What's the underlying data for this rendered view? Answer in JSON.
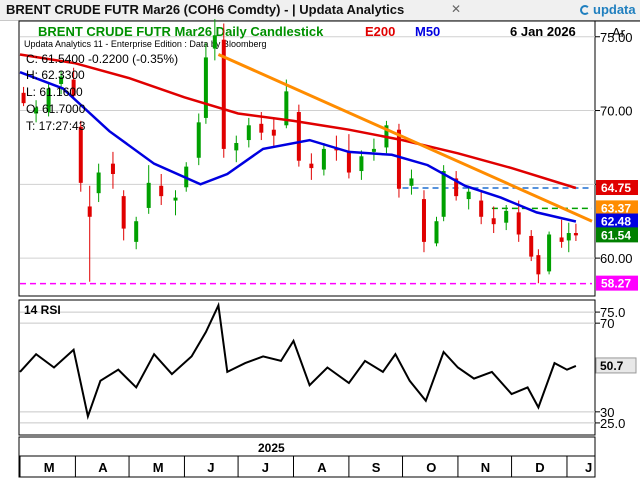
{
  "window": {
    "title": "BRENT CRUDE FUTR  Mar26 (COH6 Comdty) - | Updata Analytics",
    "close_glyph": "✕",
    "logo_text": "updata",
    "logo_icon": "updata-logo-icon"
  },
  "chart_data": [
    {
      "type": "candlestick",
      "title": "BRENT CRUDE FUTR  Mar26 Daily Candlestick",
      "indicators": [
        {
          "label": "E200",
          "color": "#e00000"
        },
        {
          "label": "M50",
          "color": "#0000e0"
        }
      ],
      "date": "6 Jan 2026",
      "subtitle": "Updata Analytics 11 - Enterprise Edition : Data by Bloomberg",
      "ohlc_readout": {
        "close": "C: 61.5400  -0.2200 (-0.35%)",
        "high": "H: 62.3300",
        "low": "L: 61.1600",
        "open": "O: 61.7000",
        "time": "T: 17:27:43"
      },
      "axis_label": "Ar",
      "yticks": [
        "75.00",
        "70.00",
        "65.00",
        "60.00"
      ],
      "ylim": [
        57.5,
        76.0
      ],
      "x_range": [
        "2025-03-01",
        "2026-01-15"
      ],
      "value_tags": [
        {
          "text": "64.75",
          "value": 64.75,
          "bg": "#e00000",
          "fg": "#ffffff"
        },
        {
          "text": "63.37",
          "value": 63.37,
          "bg": "#ff8c00",
          "fg": "#ffffff"
        },
        {
          "text": "62.48",
          "value": 62.48,
          "bg": "#0000e0",
          "fg": "#ffffff"
        },
        {
          "text": "61.54",
          "value": 61.54,
          "bg": "#008000",
          "fg": "#ffffff"
        },
        {
          "text": "58.27",
          "value": 58.27,
          "bg": "#ff00ff",
          "fg": "#ffffff"
        }
      ],
      "horizontal_lines": [
        {
          "value": 64.75,
          "color": "#1f6fd0",
          "style": "dashed",
          "from": "2025-10-01"
        },
        {
          "value": 63.37,
          "color": "#00a000",
          "style": "dashed",
          "from": "2025-11-20"
        },
        {
          "value": 58.27,
          "color": "#ff00ff",
          "style": "dashed",
          "from": "2025-03-01"
        }
      ],
      "trendline": {
        "color": "#ff8c00",
        "points": [
          [
            "2025-06-20",
            73.8
          ],
          [
            "2026-01-15",
            62.5
          ]
        ]
      },
      "candles": [
        [
          "2025-03-03",
          71.2,
          71.6,
          70.3,
          70.5
        ],
        [
          "2025-03-10",
          69.8,
          70.7,
          69.2,
          70.2
        ],
        [
          "2025-03-17",
          69.9,
          71.8,
          69.6,
          71.5
        ],
        [
          "2025-03-24",
          71.8,
          72.7,
          71.1,
          72.3
        ],
        [
          "2025-03-31",
          72.1,
          72.9,
          70.8,
          71.0
        ],
        [
          "2025-04-04",
          68.9,
          69.3,
          64.5,
          65.1
        ],
        [
          "2025-04-09",
          63.5,
          64.9,
          58.4,
          62.8
        ],
        [
          "2025-04-14",
          64.4,
          66.4,
          63.8,
          65.8
        ],
        [
          "2025-04-22",
          66.4,
          67.2,
          64.7,
          65.7
        ],
        [
          "2025-04-28",
          64.2,
          64.6,
          61.2,
          62.0
        ],
        [
          "2025-05-05",
          61.1,
          62.8,
          60.6,
          62.5
        ],
        [
          "2025-05-12",
          63.4,
          66.3,
          63.0,
          65.1
        ],
        [
          "2025-05-19",
          64.9,
          65.7,
          63.6,
          64.2
        ],
        [
          "2025-05-27",
          63.9,
          64.6,
          62.9,
          64.1
        ],
        [
          "2025-06-02",
          64.8,
          66.5,
          64.5,
          66.2
        ],
        [
          "2025-06-09",
          66.8,
          69.8,
          66.3,
          69.2
        ],
        [
          "2025-06-13",
          69.5,
          74.6,
          69.1,
          73.6
        ],
        [
          "2025-06-18",
          74.2,
          76.2,
          73.4,
          75.1
        ],
        [
          "2025-06-23",
          74.8,
          75.9,
          66.8,
          67.4
        ],
        [
          "2025-06-30",
          67.3,
          68.3,
          66.5,
          67.8
        ],
        [
          "2025-07-07",
          68.0,
          69.5,
          67.5,
          69.0
        ],
        [
          "2025-07-14",
          69.1,
          69.9,
          68.0,
          68.5
        ],
        [
          "2025-07-21",
          68.7,
          69.4,
          67.6,
          68.3
        ],
        [
          "2025-07-28",
          69.0,
          72.1,
          68.8,
          71.3
        ],
        [
          "2025-08-04",
          69.9,
          70.4,
          66.2,
          66.6
        ],
        [
          "2025-08-11",
          66.4,
          67.1,
          65.3,
          66.1
        ],
        [
          "2025-08-18",
          66.0,
          67.8,
          65.6,
          67.4
        ],
        [
          "2025-08-25",
          67.5,
          68.3,
          66.6,
          67.3
        ],
        [
          "2025-09-01",
          67.2,
          68.4,
          65.4,
          65.8
        ],
        [
          "2025-09-08",
          65.9,
          67.3,
          65.3,
          66.9
        ],
        [
          "2025-09-15",
          67.2,
          68.1,
          66.6,
          67.4
        ],
        [
          "2025-09-22",
          67.5,
          69.3,
          67.1,
          69.0
        ],
        [
          "2025-09-29",
          68.7,
          69.1,
          64.1,
          64.7
        ],
        [
          "2025-10-06",
          64.9,
          66.0,
          64.3,
          65.4
        ],
        [
          "2025-10-13",
          64.0,
          64.6,
          60.4,
          61.1
        ],
        [
          "2025-10-20",
          61.0,
          62.8,
          60.8,
          62.5
        ],
        [
          "2025-10-24",
          62.8,
          66.3,
          62.5,
          65.9
        ],
        [
          "2025-10-31",
          65.4,
          65.9,
          63.9,
          64.2
        ],
        [
          "2025-11-07",
          64.0,
          64.9,
          63.3,
          64.5
        ],
        [
          "2025-11-14",
          63.9,
          64.6,
          62.3,
          62.8
        ],
        [
          "2025-11-21",
          62.7,
          63.5,
          61.7,
          62.3
        ],
        [
          "2025-11-28",
          62.4,
          63.6,
          61.9,
          63.2
        ],
        [
          "2025-12-05",
          63.1,
          63.9,
          61.1,
          61.6
        ],
        [
          "2025-12-12",
          61.5,
          61.9,
          59.8,
          60.1
        ],
        [
          "2025-12-16",
          60.2,
          60.6,
          58.3,
          58.9
        ],
        [
          "2025-12-22",
          59.1,
          61.8,
          58.9,
          61.6
        ],
        [
          "2025-12-29",
          61.4,
          62.6,
          60.7,
          61.1
        ],
        [
          "2026-01-02",
          61.2,
          62.4,
          60.4,
          61.7
        ],
        [
          "2026-01-06",
          61.7,
          62.33,
          61.16,
          61.54
        ]
      ],
      "e200": [
        [
          "2025-03-01",
          73.8
        ],
        [
          "2025-04-01",
          73.2
        ],
        [
          "2025-05-01",
          72.2
        ],
        [
          "2025-06-01",
          70.9
        ],
        [
          "2025-07-01",
          69.8
        ],
        [
          "2025-08-01",
          69.3
        ],
        [
          "2025-09-01",
          68.7
        ],
        [
          "2025-10-01",
          68.0
        ],
        [
          "2025-11-01",
          67.1
        ],
        [
          "2025-12-01",
          66.1
        ],
        [
          "2026-01-06",
          64.75
        ]
      ],
      "m50": [
        [
          "2025-03-01",
          72.6
        ],
        [
          "2025-03-25",
          71.5
        ],
        [
          "2025-04-20",
          68.6
        ],
        [
          "2025-05-15",
          66.4
        ],
        [
          "2025-06-10",
          65.0
        ],
        [
          "2025-06-25",
          65.7
        ],
        [
          "2025-07-15",
          67.4
        ],
        [
          "2025-08-10",
          68.0
        ],
        [
          "2025-09-01",
          67.2
        ],
        [
          "2025-09-25",
          67.0
        ],
        [
          "2025-10-15",
          66.3
        ],
        [
          "2025-11-05",
          64.9
        ],
        [
          "2025-11-25",
          64.1
        ],
        [
          "2025-12-15",
          63.1
        ],
        [
          "2026-01-06",
          62.48
        ]
      ]
    },
    {
      "type": "line",
      "title": "14 RSI",
      "yticks": [
        "75.0",
        "70",
        "30",
        "25.0"
      ],
      "ylim": [
        20,
        80
      ],
      "levels": [
        75,
        70,
        30,
        25
      ],
      "value_tag": {
        "text": "50.7",
        "value": 50.7,
        "bg": "#e8e8e8",
        "fg": "#000000"
      },
      "x": [
        "2025-03-01",
        "2025-03-10",
        "2025-03-20",
        "2025-03-31",
        "2025-04-08",
        "2025-04-15",
        "2025-04-25",
        "2025-05-05",
        "2025-05-15",
        "2025-05-25",
        "2025-06-05",
        "2025-06-13",
        "2025-06-20",
        "2025-06-25",
        "2025-07-05",
        "2025-07-15",
        "2025-07-25",
        "2025-08-01",
        "2025-08-10",
        "2025-08-20",
        "2025-09-01",
        "2025-09-10",
        "2025-09-20",
        "2025-09-27",
        "2025-10-05",
        "2025-10-14",
        "2025-10-24",
        "2025-11-01",
        "2025-11-10",
        "2025-11-20",
        "2025-12-01",
        "2025-12-10",
        "2025-12-16",
        "2025-12-25",
        "2026-01-01",
        "2026-01-06"
      ],
      "y": [
        48,
        56,
        50,
        58,
        28,
        44,
        49,
        41,
        56,
        47,
        55,
        66,
        78,
        48,
        52,
        55,
        53,
        62,
        42,
        50,
        43,
        53,
        48,
        56,
        44,
        35,
        57,
        50,
        45,
        48,
        38,
        41,
        32,
        52,
        49,
        50.7
      ]
    }
  ],
  "xaxis": {
    "year_label": "2025",
    "months": [
      {
        "label": "M",
        "date": "2025-03-01"
      },
      {
        "label": "A",
        "date": "2025-04-01"
      },
      {
        "label": "M",
        "date": "2025-05-01"
      },
      {
        "label": "J",
        "date": "2025-06-01"
      },
      {
        "label": "J",
        "date": "2025-07-01"
      },
      {
        "label": "A",
        "date": "2025-08-01"
      },
      {
        "label": "S",
        "date": "2025-09-01"
      },
      {
        "label": "O",
        "date": "2025-10-01"
      },
      {
        "label": "N",
        "date": "2025-11-01"
      },
      {
        "label": "D",
        "date": "2025-12-01"
      },
      {
        "label": "J",
        "date": "2026-01-01"
      }
    ]
  }
}
